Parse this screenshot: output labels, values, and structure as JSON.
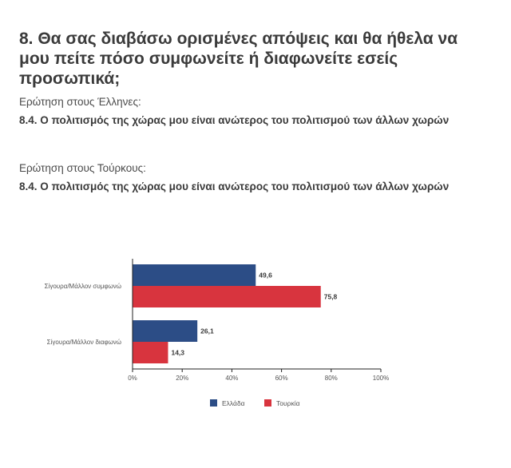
{
  "question": {
    "title": "8. Θα σας διαβάσω ορισμένες απόψεις και θα ήθελα να μου πείτε πόσο συμφωνείτε ή διαφωνείτε εσείς προσωπικά;",
    "greeks_label": "Ερώτηση στους Έλληνες:",
    "greeks_statement": "8.4. Ο πολιτισμός της χώρας μου είναι ανώτερος του πολιτισμού των άλλων χωρών",
    "turks_label": "Ερώτηση στους Τούρκους:",
    "turks_statement": "8.4. Ο πολιτισμός της χώρας μου είναι ανώτερος του πολιτισμού των άλλων χωρών"
  },
  "colors": {
    "greece": "#2c4d86",
    "turkey": "#d8343e",
    "axis": "#222222",
    "text": "#3a3a3a"
  },
  "chart_data": {
    "type": "bar",
    "orientation": "horizontal",
    "categories": [
      "Σίγουρα/Μάλλον συμφωνώ",
      "Σίγουρα/Μάλλον διαφωνώ"
    ],
    "series": [
      {
        "name": "Ελλάδα",
        "values": [
          49.6,
          26.1
        ],
        "labels": [
          "49,6",
          "26,1"
        ]
      },
      {
        "name": "Τουρκία",
        "values": [
          75.8,
          14.3
        ],
        "labels": [
          "75,8",
          "14,3"
        ]
      }
    ],
    "xlim": [
      0,
      100
    ],
    "x_ticks": [
      0,
      20,
      40,
      60,
      80,
      100
    ],
    "x_tick_labels": [
      "0%",
      "20%",
      "40%",
      "60%",
      "80%",
      "100%"
    ],
    "grid": false,
    "legend_position": "bottom"
  }
}
